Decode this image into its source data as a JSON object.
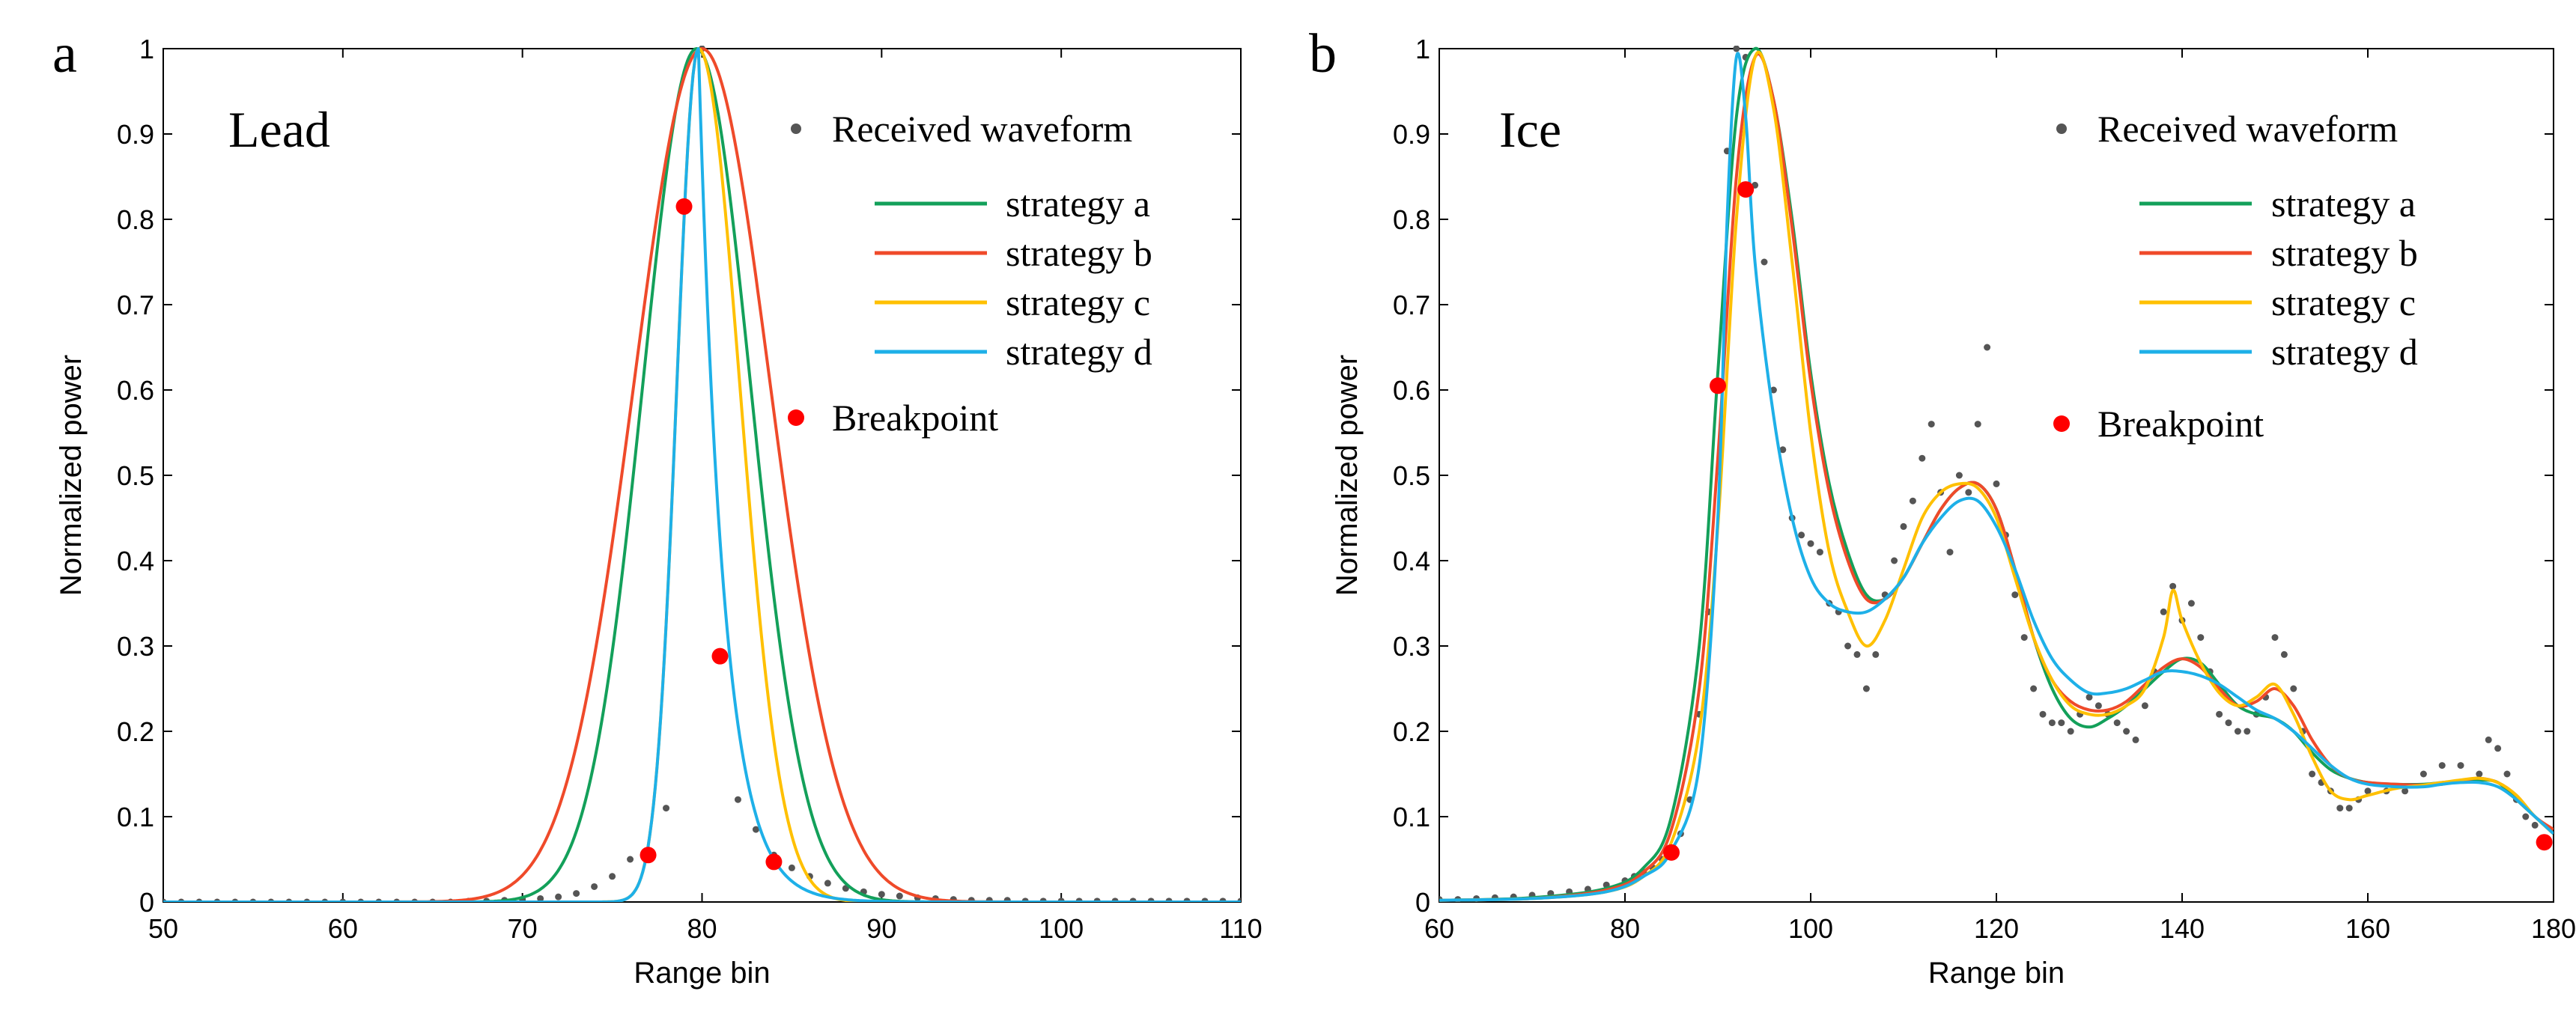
{
  "colors": {
    "strategy_a": "#13a05a",
    "strategy_b": "#ef4a2a",
    "strategy_c": "#ffc000",
    "strategy_d": "#1eb0e8",
    "received": "#555555",
    "breakpoint": "#ff0000"
  },
  "chart_data": [
    {
      "type": "line",
      "panel": "a",
      "title": "Lead",
      "xlabel": "Range bin",
      "ylabel": "Normalized power",
      "xlim": [
        50,
        110
      ],
      "ylim": [
        0,
        1
      ],
      "xticks": [
        50,
        60,
        70,
        80,
        90,
        100,
        110
      ],
      "yticks": [
        0,
        0.1,
        0.2,
        0.3,
        0.4,
        0.5,
        0.6,
        0.7,
        0.8,
        0.9,
        1
      ],
      "legend_position": "top-right",
      "legend": [
        "Received waveform",
        "strategy a",
        "strategy b",
        "strategy c",
        "strategy d",
        "Breakpoint"
      ],
      "received_waveform": {
        "name": "Received waveform",
        "x": [
          50,
          51,
          52,
          53,
          54,
          55,
          56,
          57,
          58,
          59,
          60,
          61,
          62,
          63,
          64,
          65,
          66,
          67,
          68,
          69,
          70,
          71,
          72,
          73,
          74,
          75,
          76,
          77,
          78,
          79,
          80,
          81,
          82,
          83,
          84,
          85,
          86,
          87,
          88,
          89,
          90,
          91,
          92,
          93,
          94,
          95,
          96,
          97,
          98,
          99,
          100,
          101,
          102,
          103,
          104,
          105,
          106,
          107,
          108,
          109,
          110
        ],
        "y": [
          0,
          0,
          0,
          0,
          0,
          0,
          0,
          0,
          0,
          0,
          0,
          0,
          0,
          0,
          0,
          0,
          0,
          0.001,
          0.001,
          0.002,
          0.003,
          0.004,
          0.006,
          0.01,
          0.018,
          0.03,
          0.05,
          0.06,
          0.11,
          0.81,
          1.0,
          0.29,
          0.12,
          0.085,
          0.055,
          0.04,
          0.03,
          0.022,
          0.016,
          0.012,
          0.009,
          0.007,
          0.005,
          0.004,
          0.003,
          0.002,
          0.002,
          0.002,
          0.001,
          0.001,
          0.001,
          0.001,
          0.001,
          0.001,
          0.001,
          0.001,
          0.001,
          0.001,
          0.001,
          0.001,
          0.001
        ]
      },
      "series": [
        {
          "name": "strategy a",
          "model": "gauss",
          "params": {
            "A": 1,
            "mu": 79.7,
            "sigma": 3.0
          }
        },
        {
          "name": "strategy b",
          "model": "gauss",
          "params": {
            "A": 1,
            "mu": 80.0,
            "sigma": 3.8
          }
        },
        {
          "name": "strategy c",
          "model": "asym_gauss",
          "params": {
            "A": 1,
            "mu": 79.8,
            "sigma_left": 1.2,
            "sigma_right": 2.3
          }
        },
        {
          "name": "strategy d",
          "model": "asym_peak",
          "params": {
            "A": 1,
            "mu": 79.8,
            "sigma_left": 1.2,
            "tau_right": 1.4
          }
        }
      ],
      "breakpoints": {
        "x": [
          77,
          79,
          81,
          84
        ],
        "y": [
          0.055,
          0.815,
          0.288,
          0.047
        ]
      }
    },
    {
      "type": "line",
      "panel": "b",
      "title": "Ice",
      "xlabel": "Range bin",
      "ylabel": "Normalized power",
      "xlim": [
        60,
        180
      ],
      "ylim": [
        0,
        1
      ],
      "xticks": [
        60,
        80,
        100,
        120,
        140,
        160,
        180
      ],
      "yticks": [
        0,
        0.1,
        0.2,
        0.3,
        0.4,
        0.5,
        0.6,
        0.7,
        0.8,
        0.9,
        1
      ],
      "legend_position": "top-right",
      "legend": [
        "Received waveform",
        "strategy a",
        "strategy b",
        "strategy c",
        "strategy d",
        "Breakpoint"
      ],
      "received_waveform": {
        "name": "Received waveform",
        "x": [
          60,
          62,
          64,
          66,
          68,
          70,
          72,
          74,
          76,
          78,
          80,
          81,
          82,
          83,
          84,
          85,
          86,
          87,
          88,
          89,
          90,
          91,
          92,
          93,
          94,
          95,
          96,
          97,
          98,
          99,
          100,
          101,
          102,
          103,
          104,
          105,
          106,
          107,
          108,
          109,
          110,
          111,
          112,
          113,
          114,
          115,
          116,
          117,
          118,
          119,
          120,
          121,
          122,
          123,
          124,
          125,
          126,
          127,
          128,
          129,
          130,
          131,
          132,
          133,
          134,
          135,
          136,
          137,
          138,
          139,
          140,
          141,
          142,
          143,
          144,
          145,
          146,
          147,
          148,
          149,
          150,
          151,
          152,
          153,
          154,
          155,
          156,
          157,
          158,
          159,
          160,
          162,
          164,
          166,
          168,
          170,
          172,
          173,
          174,
          175,
          176,
          177,
          178,
          179
        ],
        "y": [
          0.003,
          0.003,
          0.004,
          0.005,
          0.006,
          0.008,
          0.01,
          0.012,
          0.015,
          0.02,
          0.025,
          0.03,
          0.035,
          0.04,
          0.05,
          0.06,
          0.08,
          0.12,
          0.22,
          0.34,
          0.6,
          0.88,
          1.0,
          0.99,
          0.84,
          0.75,
          0.6,
          0.53,
          0.45,
          0.43,
          0.42,
          0.41,
          0.35,
          0.34,
          0.3,
          0.29,
          0.25,
          0.29,
          0.36,
          0.4,
          0.44,
          0.47,
          0.52,
          0.56,
          0.48,
          0.41,
          0.5,
          0.48,
          0.56,
          0.65,
          0.49,
          0.43,
          0.36,
          0.31,
          0.25,
          0.22,
          0.21,
          0.21,
          0.2,
          0.22,
          0.24,
          0.23,
          0.22,
          0.21,
          0.2,
          0.19,
          0.23,
          0.27,
          0.34,
          0.37,
          0.33,
          0.35,
          0.31,
          0.27,
          0.22,
          0.21,
          0.2,
          0.2,
          0.22,
          0.24,
          0.31,
          0.29,
          0.25,
          0.2,
          0.15,
          0.14,
          0.13,
          0.11,
          0.11,
          0.12,
          0.13,
          0.13,
          0.13,
          0.15,
          0.16,
          0.16,
          0.15,
          0.19,
          0.18,
          0.15,
          0.12,
          0.1,
          0.09,
          0.07
        ]
      },
      "series": [
        {
          "name": "strategy a",
          "model": "knots",
          "x": [
            60,
            70,
            78,
            82,
            85,
            88,
            90,
            92,
            94,
            96,
            98,
            100,
            102,
            104,
            106,
            108,
            110,
            112,
            114,
            116,
            118,
            120,
            122,
            124,
            126,
            128,
            130,
            132,
            134,
            136,
            138,
            140,
            142,
            144,
            146,
            148,
            150,
            152,
            154,
            156,
            158,
            160,
            163,
            166,
            168,
            170,
            172,
            174,
            176,
            178,
            180
          ],
          "y": [
            0.002,
            0.005,
            0.016,
            0.04,
            0.1,
            0.3,
            0.62,
            0.92,
            1.0,
            0.94,
            0.8,
            0.62,
            0.49,
            0.41,
            0.36,
            0.355,
            0.38,
            0.42,
            0.46,
            0.485,
            0.49,
            0.46,
            0.39,
            0.31,
            0.25,
            0.215,
            0.205,
            0.215,
            0.23,
            0.25,
            0.27,
            0.285,
            0.28,
            0.255,
            0.23,
            0.22,
            0.215,
            0.2,
            0.175,
            0.155,
            0.145,
            0.14,
            0.138,
            0.138,
            0.14,
            0.142,
            0.143,
            0.14,
            0.12,
            0.1,
            0.08
          ]
        },
        {
          "name": "strategy b",
          "model": "knots",
          "x": [
            60,
            70,
            78,
            82,
            85,
            88,
            90,
            92,
            94,
            96,
            98,
            100,
            102,
            104,
            106,
            108,
            110,
            112,
            114,
            116,
            118,
            120,
            122,
            124,
            126,
            128,
            130,
            132,
            134,
            136,
            138,
            140,
            142,
            144,
            146,
            148,
            150,
            152,
            154,
            156,
            158,
            160,
            163,
            166,
            168,
            170,
            172,
            174,
            176,
            178,
            180
          ],
          "y": [
            0.002,
            0.004,
            0.014,
            0.035,
            0.085,
            0.25,
            0.52,
            0.85,
            0.99,
            0.94,
            0.79,
            0.61,
            0.48,
            0.4,
            0.355,
            0.355,
            0.38,
            0.42,
            0.46,
            0.485,
            0.49,
            0.46,
            0.39,
            0.31,
            0.26,
            0.235,
            0.225,
            0.225,
            0.235,
            0.255,
            0.275,
            0.285,
            0.275,
            0.25,
            0.23,
            0.235,
            0.25,
            0.23,
            0.19,
            0.16,
            0.145,
            0.14,
            0.138,
            0.137,
            0.138,
            0.142,
            0.145,
            0.14,
            0.125,
            0.1,
            0.085
          ]
        },
        {
          "name": "strategy c",
          "model": "knots",
          "x": [
            60,
            70,
            78,
            82,
            85,
            88,
            90,
            92,
            94,
            96,
            98,
            100,
            102,
            104,
            106,
            108,
            110,
            112,
            114,
            116,
            118,
            120,
            122,
            124,
            126,
            128,
            130,
            132,
            134,
            136,
            138,
            139,
            140,
            142,
            144,
            146,
            148,
            150,
            152,
            154,
            156,
            158,
            160,
            163,
            166,
            168,
            170,
            172,
            174,
            176,
            178,
            180
          ],
          "y": [
            0.002,
            0.004,
            0.012,
            0.03,
            0.07,
            0.2,
            0.44,
            0.8,
            0.99,
            0.93,
            0.75,
            0.55,
            0.41,
            0.34,
            0.3,
            0.33,
            0.39,
            0.45,
            0.48,
            0.49,
            0.485,
            0.45,
            0.38,
            0.31,
            0.26,
            0.23,
            0.22,
            0.22,
            0.23,
            0.25,
            0.31,
            0.365,
            0.33,
            0.28,
            0.245,
            0.23,
            0.24,
            0.255,
            0.22,
            0.17,
            0.13,
            0.12,
            0.125,
            0.133,
            0.137,
            0.14,
            0.143,
            0.145,
            0.14,
            0.125,
            0.1,
            0.08
          ]
        },
        {
          "name": "strategy d",
          "model": "knots",
          "x": [
            60,
            70,
            78,
            82,
            85,
            88,
            90,
            91,
            92,
            93,
            94,
            96,
            98,
            100,
            102,
            104,
            106,
            108,
            110,
            112,
            114,
            116,
            118,
            120,
            122,
            124,
            126,
            128,
            130,
            132,
            134,
            136,
            138,
            140,
            142,
            144,
            146,
            148,
            150,
            152,
            154,
            156,
            158,
            160,
            163,
            166,
            168,
            170,
            172,
            174,
            176,
            178,
            180
          ],
          "y": [
            0.002,
            0.004,
            0.012,
            0.03,
            0.06,
            0.16,
            0.45,
            0.8,
            0.99,
            0.92,
            0.75,
            0.57,
            0.45,
            0.38,
            0.35,
            0.34,
            0.34,
            0.355,
            0.38,
            0.42,
            0.45,
            0.47,
            0.47,
            0.44,
            0.39,
            0.33,
            0.285,
            0.26,
            0.245,
            0.245,
            0.25,
            0.26,
            0.27,
            0.27,
            0.265,
            0.255,
            0.24,
            0.225,
            0.215,
            0.2,
            0.18,
            0.16,
            0.145,
            0.138,
            0.135,
            0.135,
            0.138,
            0.14,
            0.14,
            0.135,
            0.12,
            0.1,
            0.08
          ]
        }
      ],
      "breakpoints": {
        "x": [
          85,
          90,
          93,
          179
        ],
        "y": [
          0.058,
          0.605,
          0.835,
          0.07
        ]
      }
    }
  ],
  "panel_tags": [
    "a",
    "b"
  ]
}
